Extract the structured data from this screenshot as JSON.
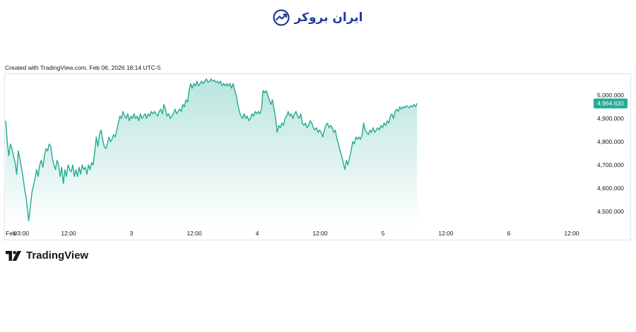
{
  "brand": {
    "name": "ایران بروکر",
    "logo_icon": "trend-arrow-icon",
    "color": "#1d3f9b"
  },
  "created_text": "Created with TradingView.com, Feb 06, 2026 18:14 UTC-5",
  "footer": {
    "logo_icon": "tradingview-logo-icon",
    "name": "TradingView"
  },
  "chart_data": {
    "type": "area",
    "line_color": "#22ab94",
    "fill_color": "#22ab94",
    "y_ticks": [
      "5,000.000",
      "4,900.000",
      "4,800.000",
      "4,700.000",
      "4,600.000",
      "4,500.000"
    ],
    "y_tick_values": [
      5000,
      4900,
      4800,
      4700,
      4600,
      4500
    ],
    "ylim": [
      4450,
      5080
    ],
    "x_ticks": [
      {
        "label": "Feb",
        "t": 0
      },
      {
        "label": "03:00",
        "t": 3
      },
      {
        "label": "12:00",
        "t": 12
      },
      {
        "label": "3",
        "t": 24
      },
      {
        "label": "12:00",
        "t": 36
      },
      {
        "label": "4",
        "t": 48
      },
      {
        "label": "12:00",
        "t": 60
      },
      {
        "label": "5",
        "t": 72
      },
      {
        "label": "12:00",
        "t": 84
      },
      {
        "label": "6",
        "t": 96
      },
      {
        "label": "12:00",
        "t": 108
      }
    ],
    "xlim": [
      0,
      111.5
    ],
    "last_value_label": "4,964.620",
    "last_value": 4964.62,
    "points": [
      [
        0,
        4890
      ],
      [
        0.3,
        4800
      ],
      [
        0.6,
        4740
      ],
      [
        0.9,
        4790
      ],
      [
        1.2,
        4770
      ],
      [
        1.5,
        4740
      ],
      [
        1.8,
        4710
      ],
      [
        2.1,
        4660
      ],
      [
        2.4,
        4760
      ],
      [
        2.7,
        4730
      ],
      [
        3.0,
        4690
      ],
      [
        3.3,
        4650
      ],
      [
        3.6,
        4600
      ],
      [
        3.9,
        4560
      ],
      [
        4.2,
        4500
      ],
      [
        4.4,
        4460
      ],
      [
        4.7,
        4520
      ],
      [
        5.0,
        4580
      ],
      [
        5.3,
        4610
      ],
      [
        5.6,
        4640
      ],
      [
        5.9,
        4680
      ],
      [
        6.2,
        4650
      ],
      [
        6.5,
        4700
      ],
      [
        6.8,
        4720
      ],
      [
        7.1,
        4690
      ],
      [
        7.4,
        4740
      ],
      [
        7.7,
        4770
      ],
      [
        8.0,
        4760
      ],
      [
        8.3,
        4790
      ],
      [
        8.6,
        4780
      ],
      [
        8.9,
        4730
      ],
      [
        9.2,
        4700
      ],
      [
        9.5,
        4680
      ],
      [
        9.8,
        4720
      ],
      [
        10.1,
        4700
      ],
      [
        10.4,
        4650
      ],
      [
        10.7,
        4690
      ],
      [
        11.0,
        4620
      ],
      [
        11.3,
        4680
      ],
      [
        11.6,
        4650
      ],
      [
        11.9,
        4700
      ],
      [
        12.2,
        4680
      ],
      [
        12.5,
        4670
      ],
      [
        12.8,
        4700
      ],
      [
        13.1,
        4650
      ],
      [
        13.4,
        4680
      ],
      [
        13.7,
        4650
      ],
      [
        14.0,
        4690
      ],
      [
        14.3,
        4660
      ],
      [
        14.6,
        4700
      ],
      [
        14.9,
        4680
      ],
      [
        15.2,
        4690
      ],
      [
        15.5,
        4660
      ],
      [
        15.8,
        4700
      ],
      [
        16.1,
        4680
      ],
      [
        16.4,
        4710
      ],
      [
        16.7,
        4700
      ],
      [
        17.0,
        4760
      ],
      [
        17.3,
        4820
      ],
      [
        17.6,
        4780
      ],
      [
        17.9,
        4830
      ],
      [
        18.2,
        4850
      ],
      [
        18.5,
        4810
      ],
      [
        18.8,
        4780
      ],
      [
        19.1,
        4770
      ],
      [
        19.4,
        4790
      ],
      [
        19.7,
        4820
      ],
      [
        20.0,
        4800
      ],
      [
        20.3,
        4810
      ],
      [
        20.6,
        4830
      ],
      [
        20.9,
        4820
      ],
      [
        21.2,
        4850
      ],
      [
        21.5,
        4880
      ],
      [
        21.8,
        4910
      ],
      [
        22.1,
        4900
      ],
      [
        22.4,
        4930
      ],
      [
        22.7,
        4910
      ],
      [
        23.0,
        4900
      ],
      [
        23.3,
        4920
      ],
      [
        23.6,
        4890
      ],
      [
        23.9,
        4910
      ],
      [
        24.2,
        4900
      ],
      [
        24.5,
        4920
      ],
      [
        24.8,
        4900
      ],
      [
        25.1,
        4910
      ],
      [
        25.4,
        4890
      ],
      [
        25.7,
        4920
      ],
      [
        26.0,
        4900
      ],
      [
        26.3,
        4910
      ],
      [
        26.6,
        4920
      ],
      [
        26.9,
        4900
      ],
      [
        27.2,
        4920
      ],
      [
        27.5,
        4910
      ],
      [
        27.8,
        4930
      ],
      [
        28.1,
        4920
      ],
      [
        28.4,
        4930
      ],
      [
        28.7,
        4920
      ],
      [
        29.0,
        4910
      ],
      [
        29.3,
        4930
      ],
      [
        29.6,
        4940
      ],
      [
        29.9,
        4920
      ],
      [
        30.2,
        4960
      ],
      [
        30.5,
        4940
      ],
      [
        30.8,
        4910
      ],
      [
        31.1,
        4920
      ],
      [
        31.4,
        4900
      ],
      [
        31.7,
        4910
      ],
      [
        32.0,
        4920
      ],
      [
        32.3,
        4940
      ],
      [
        32.6,
        4920
      ],
      [
        32.9,
        4930
      ],
      [
        33.2,
        4940
      ],
      [
        33.5,
        4930
      ],
      [
        33.8,
        4960
      ],
      [
        34.1,
        4950
      ],
      [
        34.4,
        4980
      ],
      [
        34.7,
        4970
      ],
      [
        35.0,
        5020
      ],
      [
        35.3,
        5050
      ],
      [
        35.6,
        5030
      ],
      [
        35.9,
        5050
      ],
      [
        36.2,
        5040
      ],
      [
        36.5,
        5060
      ],
      [
        36.8,
        5040
      ],
      [
        37.1,
        5050
      ],
      [
        37.4,
        5060
      ],
      [
        37.7,
        5050
      ],
      [
        38.0,
        5060
      ],
      [
        38.3,
        5070
      ],
      [
        38.6,
        5055
      ],
      [
        38.9,
        5060
      ],
      [
        39.2,
        5070
      ],
      [
        39.5,
        5060
      ],
      [
        39.8,
        5065
      ],
      [
        40.1,
        5055
      ],
      [
        40.4,
        5060
      ],
      [
        40.7,
        5050
      ],
      [
        41.0,
        5060
      ],
      [
        41.3,
        5040
      ],
      [
        41.6,
        5050
      ],
      [
        41.9,
        5040
      ],
      [
        42.2,
        5050
      ],
      [
        42.5,
        5040
      ],
      [
        42.8,
        5050
      ],
      [
        43.1,
        5030
      ],
      [
        43.4,
        5050
      ],
      [
        43.7,
        5020
      ],
      [
        44.0,
        5000
      ],
      [
        44.3,
        4960
      ],
      [
        44.6,
        4930
      ],
      [
        44.9,
        4910
      ],
      [
        45.2,
        4900
      ],
      [
        45.5,
        4920
      ],
      [
        45.8,
        4900
      ],
      [
        46.1,
        4910
      ],
      [
        46.4,
        4890
      ],
      [
        46.7,
        4900
      ],
      [
        47.0,
        4920
      ],
      [
        47.3,
        4910
      ],
      [
        47.6,
        4930
      ],
      [
        47.9,
        4920
      ],
      [
        48.2,
        4930
      ],
      [
        48.5,
        4920
      ],
      [
        48.8,
        4940
      ],
      [
        49.1,
        5020
      ],
      [
        49.4,
        5010
      ],
      [
        49.7,
        5020
      ],
      [
        50.0,
        5000
      ],
      [
        50.3,
        4980
      ],
      [
        50.6,
        4960
      ],
      [
        50.9,
        4980
      ],
      [
        51.2,
        4940
      ],
      [
        51.5,
        4900
      ],
      [
        51.8,
        4840
      ],
      [
        52.1,
        4870
      ],
      [
        52.4,
        4860
      ],
      [
        52.7,
        4880
      ],
      [
        53.0,
        4870
      ],
      [
        53.3,
        4900
      ],
      [
        53.6,
        4910
      ],
      [
        53.9,
        4930
      ],
      [
        54.2,
        4910
      ],
      [
        54.5,
        4920
      ],
      [
        54.8,
        4900
      ],
      [
        55.1,
        4920
      ],
      [
        55.4,
        4930
      ],
      [
        55.7,
        4910
      ],
      [
        56.0,
        4900
      ],
      [
        56.3,
        4920
      ],
      [
        56.6,
        4880
      ],
      [
        56.9,
        4870
      ],
      [
        57.2,
        4880
      ],
      [
        57.5,
        4860
      ],
      [
        57.8,
        4870
      ],
      [
        58.1,
        4890
      ],
      [
        58.4,
        4880
      ],
      [
        58.7,
        4860
      ],
      [
        59.0,
        4850
      ],
      [
        59.3,
        4860
      ],
      [
        59.6,
        4840
      ],
      [
        59.9,
        4850
      ],
      [
        60.2,
        4840
      ],
      [
        60.5,
        4820
      ],
      [
        60.8,
        4850
      ],
      [
        61.1,
        4870
      ],
      [
        61.4,
        4880
      ],
      [
        61.7,
        4860
      ],
      [
        62.0,
        4870
      ],
      [
        62.3,
        4860
      ],
      [
        62.6,
        4840
      ],
      [
        62.9,
        4850
      ],
      [
        63.2,
        4810
      ],
      [
        63.5,
        4790
      ],
      [
        63.8,
        4760
      ],
      [
        64.1,
        4740
      ],
      [
        64.4,
        4710
      ],
      [
        64.7,
        4680
      ],
      [
        65.0,
        4720
      ],
      [
        65.3,
        4700
      ],
      [
        65.6,
        4730
      ],
      [
        65.9,
        4760
      ],
      [
        66.2,
        4800
      ],
      [
        66.5,
        4790
      ],
      [
        66.8,
        4820
      ],
      [
        67.1,
        4810
      ],
      [
        67.4,
        4820
      ],
      [
        67.7,
        4810
      ],
      [
        68.0,
        4830
      ],
      [
        68.3,
        4880
      ],
      [
        68.6,
        4850
      ],
      [
        68.9,
        4840
      ],
      [
        69.2,
        4830
      ],
      [
        69.5,
        4850
      ],
      [
        69.8,
        4840
      ],
      [
        70.1,
        4860
      ],
      [
        70.4,
        4840
      ],
      [
        70.7,
        4850
      ],
      [
        71.0,
        4860
      ],
      [
        71.3,
        4850
      ],
      [
        71.6,
        4870
      ],
      [
        71.9,
        4860
      ],
      [
        72.2,
        4880
      ],
      [
        72.5,
        4870
      ],
      [
        72.8,
        4890
      ],
      [
        73.1,
        4880
      ],
      [
        73.4,
        4910
      ],
      [
        73.7,
        4920
      ],
      [
        74.0,
        4900
      ],
      [
        74.3,
        4930
      ],
      [
        74.6,
        4940
      ],
      [
        74.9,
        4930
      ],
      [
        75.2,
        4950
      ],
      [
        75.5,
        4940
      ],
      [
        75.8,
        4950
      ],
      [
        76.1,
        4945
      ],
      [
        76.4,
        4955
      ],
      [
        76.7,
        4950
      ],
      [
        77.0,
        4945
      ],
      [
        77.3,
        4955
      ],
      [
        77.6,
        4950
      ],
      [
        77.9,
        4960
      ],
      [
        78.2,
        4950
      ],
      [
        78.5,
        4965
      ]
    ]
  }
}
